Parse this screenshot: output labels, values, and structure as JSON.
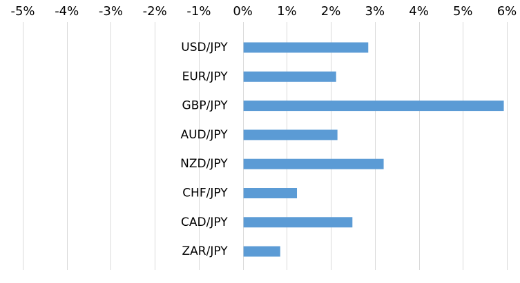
{
  "chart_data": {
    "type": "bar",
    "orientation": "horizontal",
    "title": "",
    "xlabel": "",
    "ylabel": "",
    "categories": [
      "USD/JPY",
      "EUR/JPY",
      "GBP/JPY",
      "AUD/JPY",
      "NZD/JPY",
      "CHF/JPY",
      "CAD/JPY",
      "ZAR/JPY"
    ],
    "values": [
      2.85,
      2.12,
      5.93,
      2.15,
      3.2,
      1.23,
      2.49,
      0.85
    ],
    "unit": "%",
    "xlim": [
      -5,
      6
    ],
    "ticks": [
      -5,
      -4,
      -3,
      -2,
      -1,
      0,
      1,
      2,
      3,
      4,
      5,
      6
    ],
    "tick_labels": [
      "-5%",
      "-4%",
      "-3%",
      "-2%",
      "-1%",
      "0%",
      "1%",
      "2%",
      "3%",
      "4%",
      "5%",
      "6%"
    ],
    "axis_position": "top",
    "grid": true,
    "legend": "none",
    "colors": {
      "bar": "#5b9bd5",
      "grid": "#d9d9d9",
      "text": "#000000"
    }
  }
}
